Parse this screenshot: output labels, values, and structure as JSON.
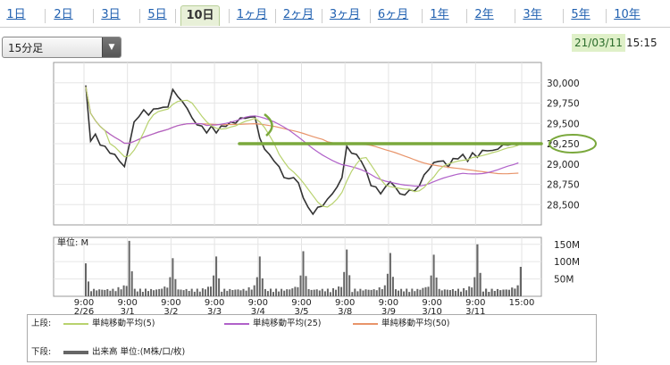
{
  "tabs": [
    {
      "label": "1日",
      "active": false
    },
    {
      "label": "2日",
      "active": false
    },
    {
      "label": "3日",
      "active": false
    },
    {
      "label": "5日",
      "active": false
    },
    {
      "label": "10日",
      "active": true
    },
    {
      "label": "1ヶ月",
      "active": false
    },
    {
      "label": "2ヶ月",
      "active": false
    },
    {
      "label": "3ヶ月",
      "active": false
    },
    {
      "label": "6ヶ月",
      "active": false
    },
    {
      "label": "1年",
      "active": false
    },
    {
      "label": "2年",
      "active": false
    },
    {
      "label": "3年",
      "active": false
    },
    {
      "label": "5年",
      "active": false
    },
    {
      "label": "10年",
      "active": false
    }
  ],
  "interval_select": {
    "value": "15分足"
  },
  "as_of": {
    "date": "21/03/11",
    "time": "15:15"
  },
  "colors": {
    "sma5": "#b8d26e",
    "sma25": "#b061c9",
    "sma50": "#e8946a",
    "price": "#333333",
    "volume": "#666666",
    "annotation": "#7aa83c"
  },
  "chart_data": [
    {
      "type": "line",
      "panel": "upper",
      "ylim": [
        28250,
        30250
      ],
      "y_ticks": [
        "30,000",
        "29,750",
        "29,500",
        "29,250",
        "29,000",
        "28,750",
        "28,500"
      ],
      "y_tick_values": [
        30000,
        29750,
        29500,
        29250,
        29000,
        28750,
        28500
      ],
      "x_tick_labels": [
        {
          "time": "9:00",
          "date": "2/26"
        },
        {
          "time": "9:00",
          "date": "3/1"
        },
        {
          "time": "9:00",
          "date": "3/2"
        },
        {
          "time": "9:00",
          "date": "3/3"
        },
        {
          "time": "9:00",
          "date": "3/4"
        },
        {
          "time": "9:00",
          "date": "3/5"
        },
        {
          "time": "9:00",
          "date": "3/8"
        },
        {
          "time": "9:00",
          "date": "3/9"
        },
        {
          "time": "9:00",
          "date": "3/10"
        },
        {
          "time": "9:00",
          "date": "3/11"
        },
        {
          "time": "15:00",
          "date": ""
        }
      ],
      "sessions": [
        {
          "date": "2/26",
          "open": 29950,
          "points": [
            29950,
            29300,
            29350,
            29250,
            29200,
            29150,
            29100,
            29050,
            28950
          ]
        },
        {
          "date": "3/1",
          "points": [
            29250,
            29500,
            29600,
            29650,
            29620,
            29660,
            29700,
            29680,
            29720
          ]
        },
        {
          "date": "3/2",
          "points": [
            29900,
            29850,
            29750,
            29700,
            29550,
            29500,
            29450,
            29400,
            29450
          ]
        },
        {
          "date": "3/3",
          "points": [
            29400,
            29450,
            29480,
            29500,
            29520,
            29550,
            29580,
            29560,
            29600
          ]
        },
        {
          "date": "3/4",
          "points": [
            29300,
            29200,
            29100,
            29050,
            28950,
            28850,
            28800,
            28850,
            28750
          ]
        },
        {
          "date": "3/5",
          "points": [
            28600,
            28450,
            28400,
            28450,
            28500,
            28550,
            28650,
            28700,
            28850
          ]
        },
        {
          "date": "3/8",
          "points": [
            29200,
            29150,
            29100,
            29050,
            28900,
            28750,
            28700,
            28650,
            28700
          ]
        },
        {
          "date": "3/9",
          "points": [
            28800,
            28700,
            28650,
            28600,
            28700,
            28650,
            28750,
            28850,
            28950
          ]
        },
        {
          "date": "3/10",
          "points": [
            29000,
            29050,
            29020,
            28980,
            29050,
            29080,
            29100,
            29050,
            29120
          ]
        },
        {
          "date": "3/11",
          "points": [
            29100,
            29150,
            29180,
            29150,
            29200,
            29220,
            29250,
            29230,
            29250
          ]
        }
      ],
      "annotations": {
        "resistance_level": 29250,
        "circled_tick": "29,250"
      }
    },
    {
      "type": "bar",
      "panel": "lower",
      "unit_label": "単位: M",
      "ylim": [
        0,
        170
      ],
      "y_ticks": [
        "150M",
        "100M",
        "50M"
      ],
      "y_tick_values": [
        150,
        100,
        50
      ],
      "sessions_volume_pattern": "high-open, low midday, high-close",
      "session_open_volume": [
        95,
        160,
        110,
        115,
        115,
        130,
        135,
        125,
        120,
        150
      ],
      "session_close_volume": [
        30,
        55,
        60,
        55,
        60,
        70,
        65,
        60,
        55,
        85
      ]
    }
  ],
  "legend": {
    "upper_label": "上段:",
    "lower_label": "下段:",
    "sma5": "単純移動平均(5)",
    "sma25": "単純移動平均(25)",
    "sma50": "単純移動平均(50)",
    "volume": "出来高 単位:(M株/口/枚)"
  }
}
